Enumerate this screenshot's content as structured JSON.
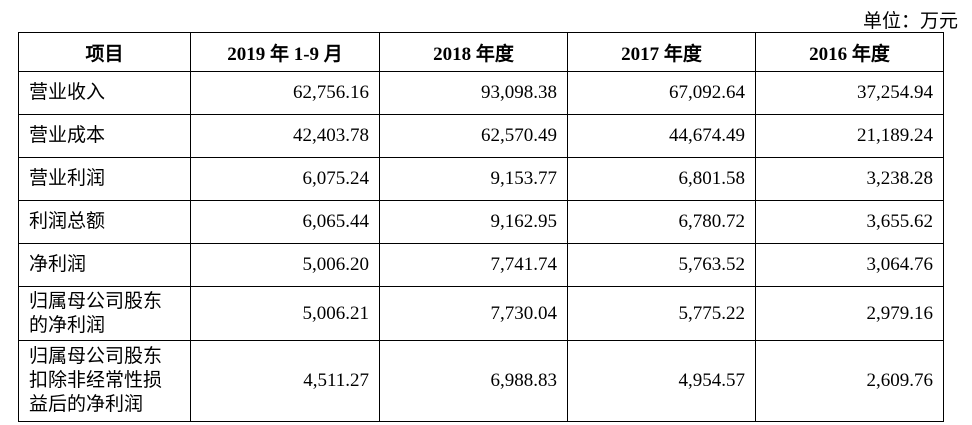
{
  "unit_label": "单位：万元",
  "headers": [
    "项目",
    "2019 年 1-9 月",
    "2018 年度",
    "2017 年度",
    "2016 年度"
  ],
  "rows": [
    {
      "label": "营业收入",
      "values": [
        "62,756.16",
        "93,098.38",
        "67,092.64",
        "37,254.94"
      ]
    },
    {
      "label": "营业成本",
      "values": [
        "42,403.78",
        "62,570.49",
        "44,674.49",
        "21,189.24"
      ]
    },
    {
      "label": "营业利润",
      "values": [
        "6,075.24",
        "9,153.77",
        "6,801.58",
        "3,238.28"
      ]
    },
    {
      "label": "利润总额",
      "values": [
        "6,065.44",
        "9,162.95",
        "6,780.72",
        "3,655.62"
      ]
    },
    {
      "label": "净利润",
      "values": [
        "5,006.20",
        "7,741.74",
        "5,763.52",
        "3,064.76"
      ]
    },
    {
      "label": "归属母公司股东的净利润",
      "values": [
        "5,006.21",
        "7,730.04",
        "5,775.22",
        "2,979.16"
      ]
    },
    {
      "label": "归属母公司股东扣除非经常性损益后的净利润",
      "values": [
        "4,511.27",
        "6,988.83",
        "4,954.57",
        "2,609.76"
      ]
    }
  ]
}
